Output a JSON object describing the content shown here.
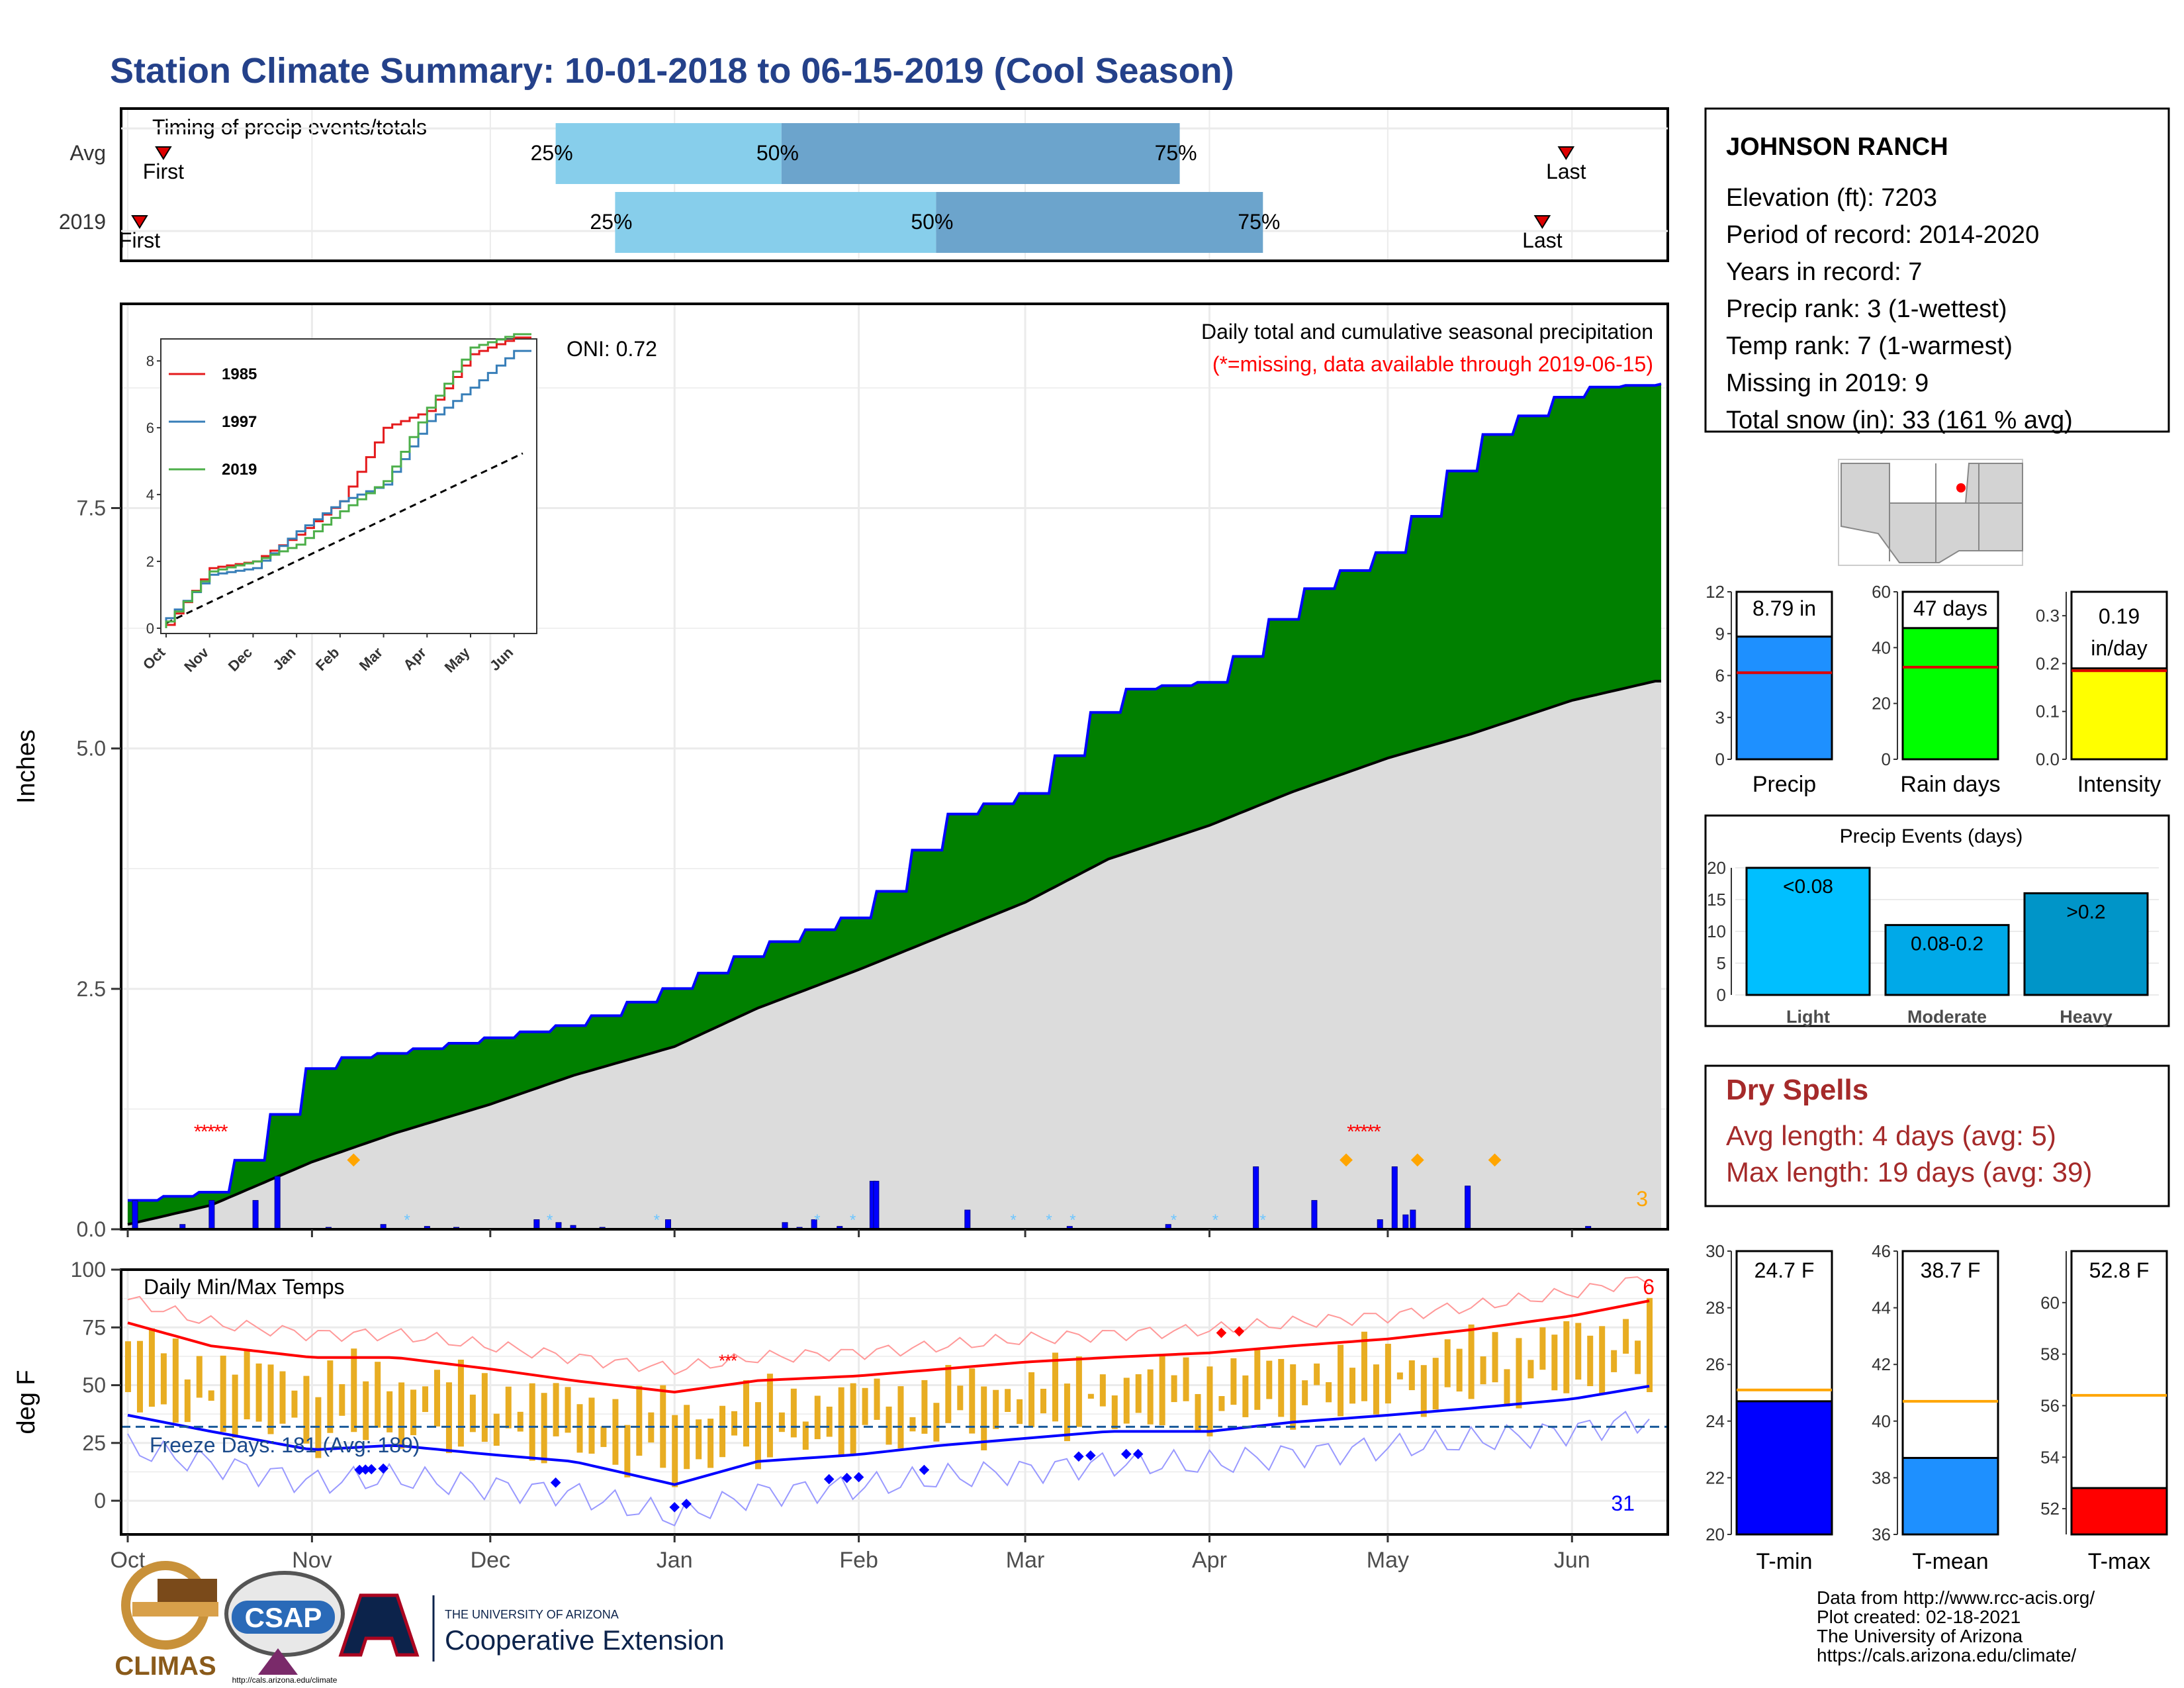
{
  "title": "Station Climate Summary: 10-01-2018 to 06-15-2019 (Cool Season)",
  "colors": {
    "title": "#24418a",
    "green": "#008000",
    "blue": "#0000ff",
    "red": "#ff0000",
    "orange": "#ffa500",
    "gold": "#e8ad22",
    "lightblue": "#87ceeb",
    "midblue": "#6ca4cc",
    "gray": "#dcdcdc",
    "dryspell": "#a52a2a"
  },
  "timing": {
    "title": "Timing of precip events/totals",
    "rows": [
      {
        "label": "Avg",
        "first_label": "First",
        "last_label": "Last",
        "pct25": "25%",
        "pct50": "50%",
        "pct75": "75%",
        "first_day": 6,
        "last_day": 242,
        "q25": 72,
        "q50": 110,
        "q75": 177
      },
      {
        "label": "2019",
        "first_label": "First",
        "last_label": "Last",
        "pct25": "25%",
        "pct50": "50%",
        "pct75": "75%",
        "first_day": 2,
        "last_day": 238,
        "q25": 82,
        "q50": 136,
        "q75": 191
      }
    ]
  },
  "main": {
    "ylabel": "Inches",
    "yticks": [
      "0.0",
      "2.5",
      "5.0",
      "7.5"
    ],
    "header": "Daily total and cumulative seasonal precipitation",
    "missing_note": "(*=missing, data available through 2019-06-15)",
    "oni": "ONI: 0.72",
    "corner_count": "3"
  },
  "inset": {
    "yticks": [
      "0",
      "2",
      "4",
      "6",
      "8"
    ],
    "months": [
      "Oct",
      "Nov",
      "Dec",
      "Jan",
      "Feb",
      "Mar",
      "Apr",
      "May",
      "Jun"
    ],
    "legend": [
      {
        "name": "1985",
        "color": "#e41a1c"
      },
      {
        "name": "1997",
        "color": "#377eb8"
      },
      {
        "name": "2019",
        "color": "#4daf4a"
      }
    ]
  },
  "temps": {
    "title": "Daily Min/Max Temps",
    "ylabel": "deg F",
    "yticks": [
      "0",
      "25",
      "50",
      "75",
      "100"
    ],
    "freeze_text": "Freeze Days: 181 (Avg: 189)",
    "high_count": "6",
    "low_count": "31"
  },
  "months": [
    "Oct",
    "Nov",
    "Dec",
    "Jan",
    "Feb",
    "Mar",
    "Apr",
    "May",
    "Jun"
  ],
  "station": {
    "name": "JOHNSON RANCH",
    "lines": [
      "Elevation (ft): 7203",
      "Period of record: 2014-2020",
      "Years in record: 7",
      "Precip rank: 3 (1-wettest)",
      "Temp rank: 7 (1-warmest)",
      "Missing in 2019: 9",
      "Total snow (in): 33 (161 % avg)"
    ]
  },
  "metrics": [
    {
      "label": "Precip",
      "value_text": "8.79 in",
      "value": 8.79,
      "avg": 6.2,
      "max": 12,
      "ticks": [
        "0",
        "3",
        "6",
        "9",
        "12"
      ],
      "color": "#1e90ff"
    },
    {
      "label": "Rain days",
      "value_text": "47 days",
      "value": 47,
      "avg": 33,
      "max": 60,
      "ticks": [
        "0",
        "20",
        "40",
        "60"
      ],
      "color": "#00ff00"
    },
    {
      "label": "Intensity",
      "value_text": "0.19",
      "value_text2": "in/day",
      "value": 0.19,
      "avg": 0.185,
      "max": 0.35,
      "ticks": [
        "0.0",
        "0.1",
        "0.2",
        "0.3"
      ],
      "color": "#ffff00"
    }
  ],
  "events": {
    "title": "Precip Events (days)",
    "yticks": [
      "0",
      "5",
      "10",
      "15",
      "20"
    ],
    "bars": [
      {
        "category": "Light",
        "label": "<0.08",
        "value": 20,
        "color": "#00bfff"
      },
      {
        "category": "Moderate",
        "label": "0.08-0.2",
        "value": 11,
        "color": "#00a9e8"
      },
      {
        "category": "Heavy",
        "label": ">0.2",
        "value": 16,
        "color": "#0095c8"
      }
    ]
  },
  "dry": {
    "title": "Dry Spells",
    "line1": "Avg length: 4 days (avg: 5)",
    "line2": "Max length: 19 days (avg: 39)"
  },
  "temp_bars": [
    {
      "label": "T-min",
      "value_text": "24.7 F",
      "value": 24.7,
      "avg": 25.1,
      "min": 20,
      "max": 30,
      "ticks": [
        "20",
        "22",
        "24",
        "26",
        "28",
        "30"
      ],
      "color": "#0000ff"
    },
    {
      "label": "T-mean",
      "value_text": "38.7 F",
      "value": 38.7,
      "avg": 40.7,
      "min": 36,
      "max": 46,
      "ticks": [
        "36",
        "38",
        "40",
        "42",
        "44",
        "46"
      ],
      "color": "#1e90ff"
    },
    {
      "label": "T-max",
      "value_text": "52.8 F",
      "value": 52.8,
      "avg": 56.4,
      "min": 51,
      "max": 62,
      "ticks": [
        "52",
        "54",
        "56",
        "58",
        "60"
      ],
      "color": "#ff0000"
    }
  ],
  "credits": [
    "Data from http://www.rcc-acis.org/",
    "Plot created: 02-18-2021",
    "The University of Arizona",
    "https://cals.arizona.edu/climate/"
  ],
  "logos": {
    "climas": "CLIMAS",
    "csap": "CSAP",
    "csap_url": "http://cals.arizona.edu/climate",
    "ua_small": "THE UNIVERSITY OF ARIZONA",
    "ua_big": "Cooperative Extension"
  },
  "chart_data": [
    {
      "type": "bar",
      "title": "Timing of precip events/totals",
      "categories": [
        "Avg",
        "2019"
      ],
      "series": [
        {
          "name": "25%",
          "values": [
            72,
            82
          ]
        },
        {
          "name": "50%",
          "values": [
            110,
            136
          ]
        },
        {
          "name": "75%",
          "values": [
            177,
            191
          ]
        }
      ]
    },
    {
      "type": "area",
      "title": "Daily total and cumulative seasonal precipitation",
      "ylabel": "Inches",
      "ylim": [
        0,
        9.5
      ],
      "x": [
        "10-01",
        "10-15",
        "11-01",
        "11-15",
        "12-01",
        "12-15",
        "01-01",
        "01-15",
        "02-01",
        "02-15",
        "03-01",
        "03-15",
        "04-01",
        "04-15",
        "05-01",
        "05-15",
        "06-01",
        "06-15"
      ],
      "series": [
        {
          "name": "2019",
          "values": [
            0.3,
            0.4,
            1.75,
            1.85,
            2.0,
            2.15,
            2.55,
            2.95,
            3.3,
            4.3,
            4.55,
            5.6,
            5.7,
            6.6,
            7.1,
            8.2,
            8.75,
            8.79
          ]
        },
        {
          "name": "Avg",
          "values": [
            0.05,
            0.25,
            0.7,
            1.0,
            1.3,
            1.6,
            1.9,
            2.3,
            2.7,
            3.05,
            3.4,
            3.85,
            4.2,
            4.55,
            4.9,
            5.15,
            5.5,
            5.7
          ]
        }
      ]
    },
    {
      "type": "line",
      "title": "Daily Min/Max Temps",
      "ylabel": "deg F",
      "ylim": [
        -10,
        100
      ],
      "x": [
        "10-01",
        "10-15",
        "11-01",
        "11-15",
        "12-01",
        "12-15",
        "01-01",
        "01-15",
        "02-01",
        "02-15",
        "03-01",
        "03-15",
        "04-01",
        "04-15",
        "05-01",
        "05-15",
        "06-01",
        "06-15"
      ],
      "series": [
        {
          "name": "Max",
          "values": [
            75,
            65,
            60,
            60,
            55,
            50,
            45,
            50,
            52,
            55,
            58,
            60,
            62,
            65,
            68,
            72,
            78,
            85
          ]
        },
        {
          "name": "Min",
          "values": [
            35,
            28,
            20,
            22,
            18,
            15,
            5,
            15,
            18,
            22,
            25,
            28,
            28,
            32,
            35,
            38,
            42,
            48
          ]
        }
      ]
    },
    {
      "type": "line",
      "categories": [
        "Oct",
        "Nov",
        "Dec",
        "Jan",
        "Feb",
        "Mar",
        "Apr",
        "May",
        "Jun"
      ],
      "ylim": [
        0,
        9
      ],
      "series": [
        {
          "name": "1985",
          "values": [
            0.1,
            1.8,
            2.0,
            2.8,
            3.8,
            6.0,
            6.5,
            8.2,
            8.7
          ]
        },
        {
          "name": "1997",
          "values": [
            0.3,
            1.6,
            1.8,
            2.9,
            3.8,
            4.3,
            6.2,
            7.2,
            8.3
          ]
        },
        {
          "name": "2019",
          "values": [
            0.2,
            1.7,
            2.0,
            2.5,
            3.5,
            4.4,
            6.6,
            8.4,
            8.8
          ]
        }
      ]
    }
  ]
}
